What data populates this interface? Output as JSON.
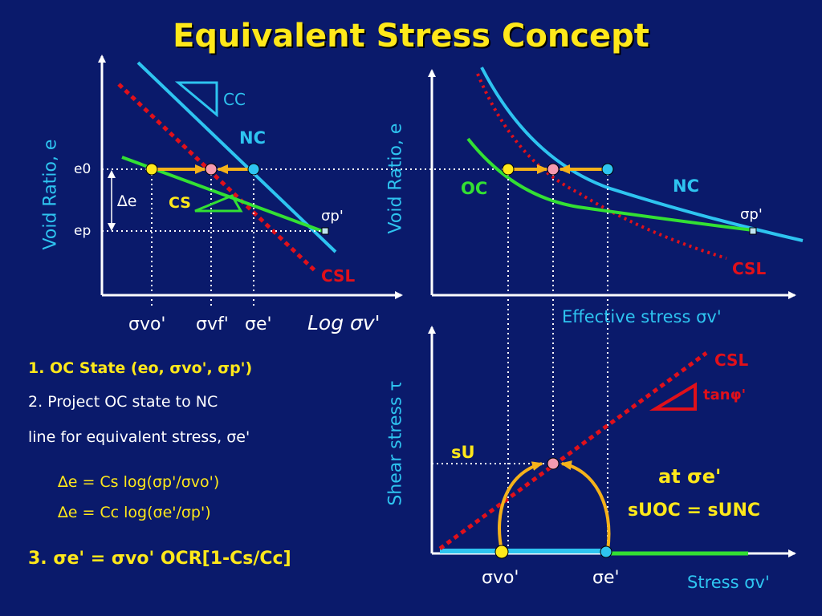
{
  "title": "Equivalent Stress Concept",
  "left_plot": {
    "y_axis_label": "Void Ratio, e",
    "x_axis_label": "Log σv'",
    "e0": "e0",
    "ep": "ep",
    "de": "∆e",
    "cc": "CC",
    "cs": "CS",
    "nc": "NC",
    "csl": "CSL",
    "sigma_p": "σp'",
    "x_ticks": [
      "σvo'",
      "σvf'",
      "σe'"
    ]
  },
  "right_top_plot": {
    "y_axis_label": "Void Ratio, e",
    "x_axis_label": "Effective stress σv'",
    "oc": "OC",
    "nc": "NC",
    "csl": "CSL",
    "sigma_p": "σp'"
  },
  "right_bottom_plot": {
    "y_axis_label": "Shear stress τ",
    "x_axis_label": "Stress σv'",
    "csl": "CSL",
    "tan_phi": "tanφ'",
    "su": "sU",
    "x_ticks": [
      "σvo'",
      "σe'"
    ],
    "at_label": "at σe'",
    "su_eq": "sUOC = sUNC"
  },
  "steps": {
    "s1": "1. OC State (eo, σvo', σp')",
    "s2a": "2. Project OC state to NC",
    "s2b": "line for equivalent stress, σe'",
    "eq1": "∆e = Cs log(σp'/σvo')",
    "eq2": "∆e = Cc log(σe'/σp')",
    "s3": "3.  σe' = σvo' OCR[1-Cs/Cc]"
  },
  "colors": {
    "background": "#0a1a6b",
    "title": "#ffe81a",
    "nc_line": "#2ec4f0",
    "oc_line": "#33e033",
    "csl_line": "#e0101a",
    "arrow": "#f5b21a",
    "axis_label": "#2ec4f0"
  }
}
